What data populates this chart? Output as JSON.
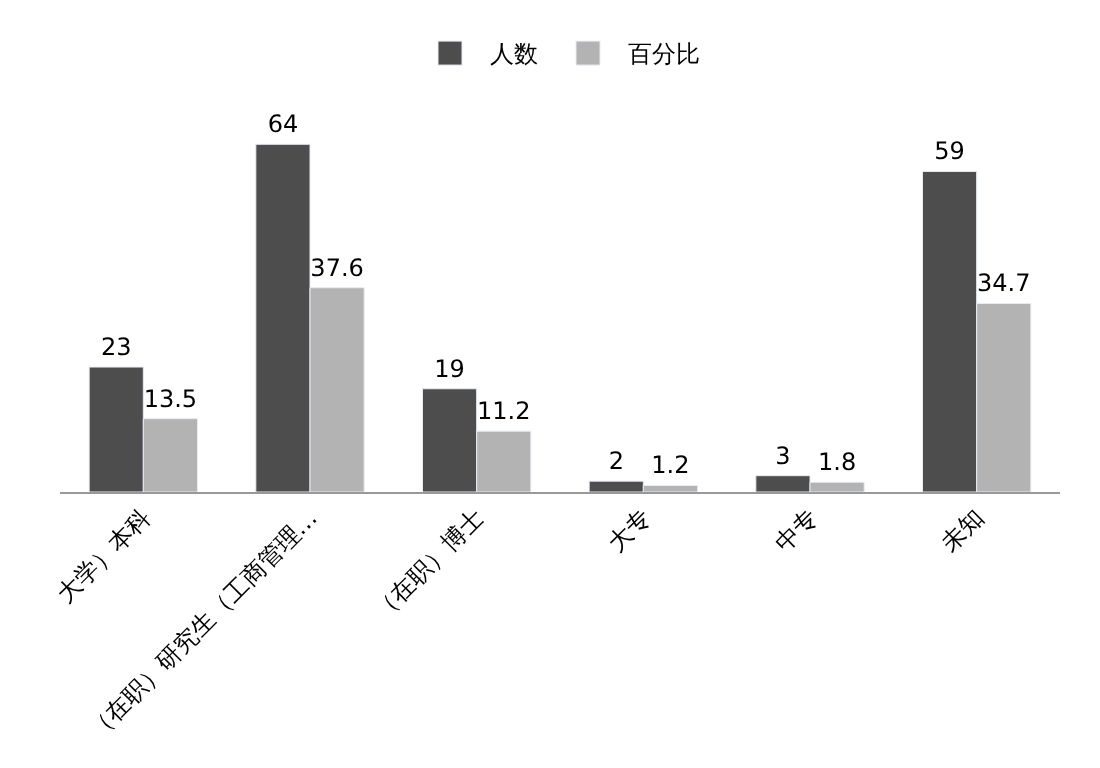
{
  "chart_data": {
    "type": "bar",
    "categories": [
      "大学）本科",
      "（在职）研究生（工商管理…",
      "（在职）博士",
      "大专",
      "中专",
      "未知"
    ],
    "series": [
      {
        "name": "人数",
        "color": "#4d4d4d",
        "values": [
          23,
          64,
          19,
          2,
          3,
          59
        ]
      },
      {
        "name": "百分比",
        "color": "#b3b3b3",
        "values": [
          13.5,
          37.6,
          11.2,
          1.2,
          1.8,
          34.7
        ]
      }
    ],
    "data_labels": true,
    "legend": "top",
    "tick_labels": "x"
  }
}
